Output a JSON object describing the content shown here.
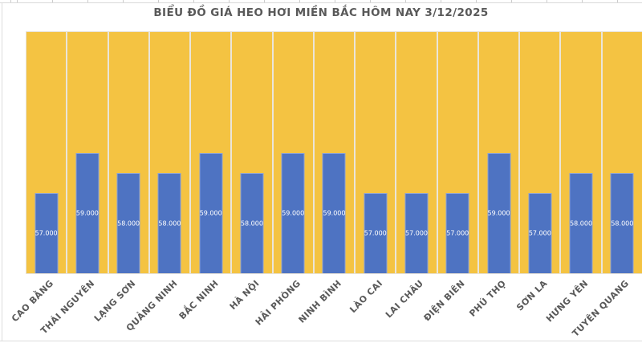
{
  "page": {
    "background": "#FFFFFF"
  },
  "chart_data": {
    "type": "bar",
    "title": "BIỂU ĐỒ GIÁ HEO HƠI MIỀN BẮC HÔM NAY 3/12/2025",
    "categories": [
      "CAO BẰNG",
      "THÁI NGUYÊN",
      "LẠNG SƠN",
      "QUẢNG NINH",
      "BẮC NINH",
      "HÀ NỘI",
      "HẢI PHÒNG",
      "NINH BÌNH",
      "LÀO CAI",
      "LAI CHÂU",
      "ĐIỆN BIÊN",
      "PHÚ THỌ",
      "SƠN LA",
      "HƯNG YÊN",
      "TUYÊN QUANG"
    ],
    "values": [
      57000,
      59000,
      58000,
      58000,
      59000,
      58000,
      59000,
      59000,
      57000,
      57000,
      57000,
      59000,
      57000,
      58000,
      58000
    ],
    "value_labels": [
      "57.000",
      "59.000",
      "58.000",
      "58.000",
      "59.000",
      "58.000",
      "59.000",
      "59.000",
      "57.000",
      "57.000",
      "57.000",
      "59.000",
      "57.000",
      "58.000",
      "58.000"
    ],
    "xlabel": "",
    "ylabel": "",
    "ylim": [
      53000,
      65000
    ],
    "legend": "none",
    "grid": "vertical category separators only",
    "value_label_position": "inside-center",
    "category_label_rotation_deg": 45,
    "colors": {
      "plot_background": "#F4C342",
      "bar_fill": "#4E73C2",
      "bar_border": "#8AA2D8",
      "value_label_text": "#FFFFFF",
      "title_text": "#595959",
      "axis_label_text": "#595959",
      "category_separator": "#EAE5DA",
      "frame_line": "#DCDCDC"
    }
  }
}
